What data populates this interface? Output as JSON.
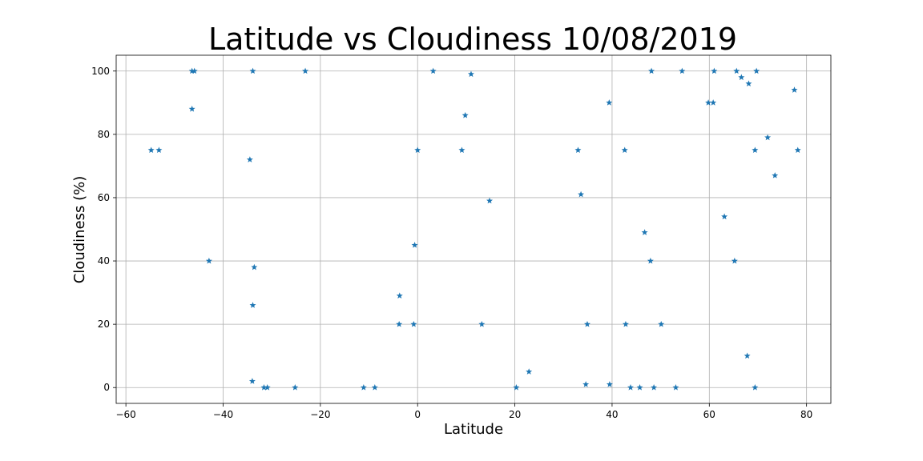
{
  "chart_data": {
    "type": "scatter",
    "title": "Latitude vs Cloudiness 10/08/2019",
    "xlabel": "Latitude",
    "ylabel": "Cloudiness (%)",
    "xlim": [
      -62,
      85
    ],
    "ylim": [
      -5,
      105
    ],
    "xticks": [
      -60,
      -40,
      -20,
      0,
      20,
      40,
      60,
      80
    ],
    "yticks": [
      0,
      20,
      40,
      60,
      80,
      100
    ],
    "grid": true,
    "marker": "star",
    "color": "#1f77b4",
    "points": [
      [
        -54.8,
        75
      ],
      [
        -53.2,
        75
      ],
      [
        -46.4,
        100
      ],
      [
        -45.9,
        100
      ],
      [
        -46.4,
        88
      ],
      [
        -42.9,
        40
      ],
      [
        -34.5,
        72
      ],
      [
        -33.9,
        100
      ],
      [
        -33.6,
        38
      ],
      [
        -33.9,
        26
      ],
      [
        -34.0,
        2
      ],
      [
        -31.6,
        0
      ],
      [
        -30.9,
        0
      ],
      [
        -25.2,
        0
      ],
      [
        -23.1,
        100
      ],
      [
        -11.1,
        0
      ],
      [
        -8.8,
        0
      ],
      [
        -3.7,
        29
      ],
      [
        -3.8,
        20
      ],
      [
        -0.8,
        20
      ],
      [
        -0.6,
        45
      ],
      [
        0.0,
        75
      ],
      [
        3.2,
        100
      ],
      [
        9.1,
        75
      ],
      [
        9.8,
        86
      ],
      [
        11.0,
        99
      ],
      [
        13.2,
        20
      ],
      [
        14.8,
        59
      ],
      [
        20.3,
        0
      ],
      [
        22.9,
        5
      ],
      [
        33.0,
        75
      ],
      [
        33.6,
        61
      ],
      [
        34.6,
        1
      ],
      [
        34.9,
        20
      ],
      [
        39.5,
        1
      ],
      [
        39.4,
        90
      ],
      [
        42.6,
        75
      ],
      [
        42.8,
        20
      ],
      [
        43.8,
        0
      ],
      [
        45.7,
        0
      ],
      [
        46.7,
        49
      ],
      [
        47.9,
        40
      ],
      [
        48.1,
        100
      ],
      [
        48.6,
        0
      ],
      [
        50.1,
        20
      ],
      [
        53.1,
        0
      ],
      [
        54.4,
        100
      ],
      [
        59.8,
        90
      ],
      [
        60.8,
        90
      ],
      [
        61.0,
        100
      ],
      [
        63.1,
        54
      ],
      [
        65.2,
        40
      ],
      [
        65.6,
        100
      ],
      [
        66.6,
        98
      ],
      [
        67.8,
        10
      ],
      [
        68.1,
        96
      ],
      [
        69.4,
        0
      ],
      [
        69.4,
        75
      ],
      [
        69.7,
        100
      ],
      [
        72.0,
        79
      ],
      [
        73.5,
        67
      ],
      [
        77.5,
        94
      ],
      [
        78.2,
        75
      ]
    ]
  }
}
